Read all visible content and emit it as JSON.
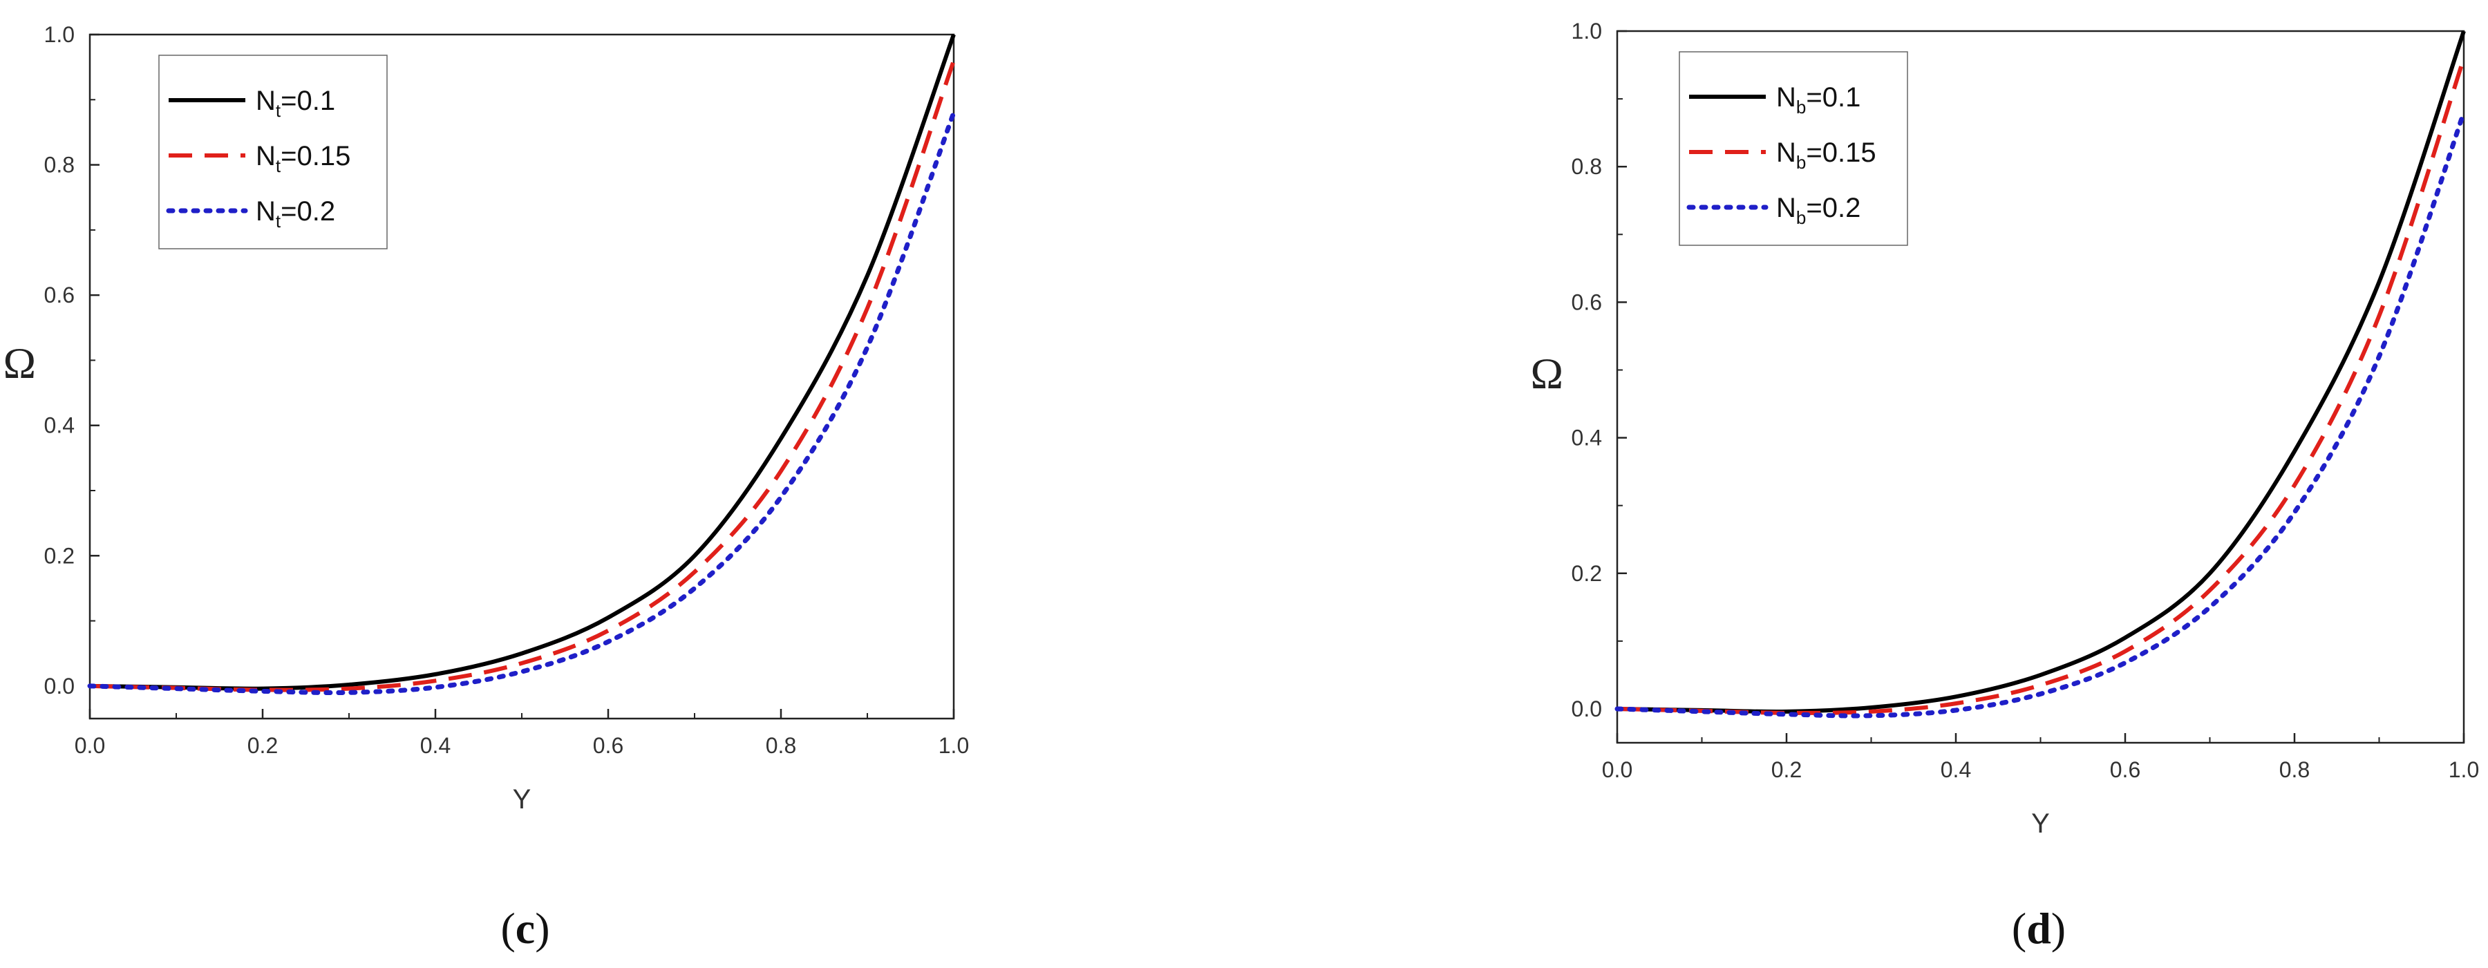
{
  "chart_data": [
    {
      "type": "line",
      "panel_label": "c",
      "xlabel": "Y",
      "ylabel": "Ω",
      "xlim": [
        0.0,
        1.0
      ],
      "ylim": [
        -0.05,
        1.0
      ],
      "xticks": [
        "0.0",
        "0.2",
        "0.4",
        "0.6",
        "0.8",
        "1.0"
      ],
      "yticks": [
        "0.0",
        "0.2",
        "0.4",
        "0.6",
        "0.8",
        "1.0"
      ],
      "legend_position": "top-left",
      "series": [
        {
          "name_main": "N",
          "name_sub": "t",
          "name_rest": "=0.1",
          "color": "#000000",
          "style": "solid",
          "x": [
            0.0,
            0.1,
            0.2,
            0.3,
            0.4,
            0.5,
            0.6,
            0.7,
            0.8,
            0.9,
            1.0
          ],
          "values": [
            0.0,
            -0.002,
            -0.004,
            0.002,
            0.018,
            0.05,
            0.105,
            0.2,
            0.38,
            0.63,
            1.0
          ]
        },
        {
          "name_main": "N",
          "name_sub": "t",
          "name_rest": "=0.15",
          "color": "#e0201a",
          "style": "dashed",
          "x": [
            0.0,
            0.1,
            0.2,
            0.3,
            0.4,
            0.5,
            0.6,
            0.7,
            0.8,
            0.9,
            1.0
          ],
          "values": [
            0.0,
            -0.003,
            -0.006,
            -0.004,
            0.008,
            0.035,
            0.085,
            0.175,
            0.33,
            0.58,
            0.96
          ]
        },
        {
          "name_main": "N",
          "name_sub": "t",
          "name_rest": "=0.2",
          "color": "#1f1fc8",
          "style": "dotted",
          "x": [
            0.0,
            0.1,
            0.2,
            0.3,
            0.4,
            0.5,
            0.6,
            0.7,
            0.8,
            0.9,
            1.0
          ],
          "values": [
            0.0,
            -0.004,
            -0.008,
            -0.01,
            -0.002,
            0.022,
            0.068,
            0.15,
            0.29,
            0.52,
            0.88
          ]
        }
      ]
    },
    {
      "type": "line",
      "panel_label": "d",
      "xlabel": "Y",
      "ylabel": "Ω",
      "xlim": [
        0.0,
        1.0
      ],
      "ylim": [
        -0.05,
        1.0
      ],
      "xticks": [
        "0.0",
        "0.2",
        "0.4",
        "0.6",
        "0.8",
        "1.0"
      ],
      "yticks": [
        "0.0",
        "0.2",
        "0.4",
        "0.6",
        "0.8",
        "1.0"
      ],
      "legend_position": "top-left",
      "series": [
        {
          "name_main": "N",
          "name_sub": "b",
          "name_rest": "=0.1",
          "color": "#000000",
          "style": "solid",
          "x": [
            0.0,
            0.1,
            0.2,
            0.3,
            0.4,
            0.5,
            0.6,
            0.7,
            0.8,
            0.9,
            1.0
          ],
          "values": [
            0.0,
            -0.002,
            -0.004,
            0.002,
            0.018,
            0.05,
            0.105,
            0.2,
            0.38,
            0.63,
            1.0
          ]
        },
        {
          "name_main": "N",
          "name_sub": "b",
          "name_rest": "=0.15",
          "color": "#e0201a",
          "style": "dashed",
          "x": [
            0.0,
            0.1,
            0.2,
            0.3,
            0.4,
            0.5,
            0.6,
            0.7,
            0.8,
            0.9,
            1.0
          ],
          "values": [
            0.0,
            -0.003,
            -0.006,
            -0.004,
            0.008,
            0.035,
            0.085,
            0.175,
            0.33,
            0.58,
            0.96
          ]
        },
        {
          "name_main": "N",
          "name_sub": "b",
          "name_rest": "=0.2",
          "color": "#1f1fc8",
          "style": "dotted",
          "x": [
            0.0,
            0.1,
            0.2,
            0.3,
            0.4,
            0.5,
            0.6,
            0.7,
            0.8,
            0.9,
            1.0
          ],
          "values": [
            0.0,
            -0.004,
            -0.008,
            -0.01,
            -0.002,
            0.022,
            0.068,
            0.15,
            0.29,
            0.52,
            0.88
          ]
        }
      ]
    }
  ]
}
